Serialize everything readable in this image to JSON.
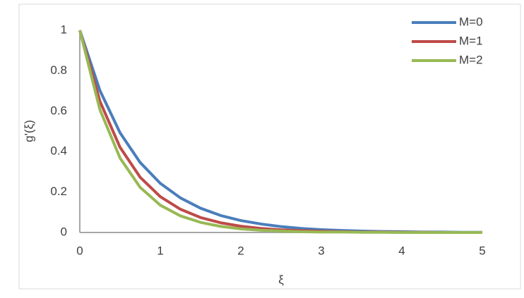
{
  "chart_data": {
    "type": "line",
    "x_label": "ξ",
    "y_label": "g'(ξ)",
    "x": [
      0,
      0.25,
      0.5,
      0.75,
      1,
      1.25,
      1.5,
      1.75,
      2,
      2.25,
      2.5,
      2.75,
      3,
      3.25,
      3.5,
      3.75,
      4,
      4.25,
      4.5,
      4.75,
      5
    ],
    "series": [
      {
        "name": "M=0",
        "color": "#4a7ebb",
        "values": [
          1,
          0.702,
          0.493,
          0.346,
          0.243,
          0.171,
          0.12,
          0.084,
          0.059,
          0.042,
          0.029,
          0.02,
          0.014,
          0.01,
          0.007,
          0.005,
          0.004,
          0.002,
          0.002,
          0.001,
          0.001
        ]
      },
      {
        "name": "M=1",
        "color": "#be4b48",
        "values": [
          1,
          0.649,
          0.421,
          0.273,
          0.177,
          0.115,
          0.074,
          0.048,
          0.031,
          0.02,
          0.013,
          0.009,
          0.006,
          0.004,
          0.002,
          0.002,
          0.001,
          0.001,
          0,
          0,
          0
        ]
      },
      {
        "name": "M=2",
        "color": "#98b954",
        "values": [
          1,
          0.607,
          0.368,
          0.223,
          0.135,
          0.082,
          0.05,
          0.03,
          0.018,
          0.011,
          0.007,
          0.004,
          0.002,
          0.002,
          0.001,
          0.001,
          0,
          0,
          0,
          0,
          0
        ]
      }
    ],
    "xlim": [
      0,
      5
    ],
    "xticks": [
      0,
      1,
      2,
      3,
      4,
      5
    ],
    "ylim": [
      0,
      1
    ],
    "yticks": [
      0,
      0.2,
      0.4,
      0.6,
      0.8,
      1
    ],
    "grid": false,
    "legend": "top-right"
  }
}
